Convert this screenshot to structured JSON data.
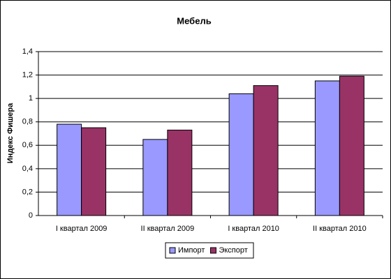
{
  "chart_data": {
    "type": "bar",
    "title": "Мебель",
    "y_label": "Индекс Фишера",
    "categories": [
      "I квартал 2009",
      "II квартал 2009",
      "I квартал 2010",
      "II квартал 2010"
    ],
    "series": [
      {
        "name": "Импорт",
        "color": "#9999ff",
        "values": [
          0.78,
          0.65,
          1.04,
          1.15
        ]
      },
      {
        "name": "Экспорт",
        "color": "#993366",
        "values": [
          0.75,
          0.73,
          1.11,
          1.19
        ]
      }
    ],
    "ylim": [
      0,
      1.4
    ],
    "yticks": [
      0,
      {
        "value": 0.2,
        "label": "0,2"
      },
      {
        "value": 0.4,
        "label": "0,4"
      },
      {
        "value": 0.6,
        "label": "0,6"
      },
      {
        "value": 0.8,
        "label": "0,8"
      },
      1,
      {
        "value": 1.2,
        "label": "1,2"
      },
      {
        "value": 1.4,
        "label": "1,4"
      }
    ],
    "grid": true,
    "legend": "bottom"
  }
}
